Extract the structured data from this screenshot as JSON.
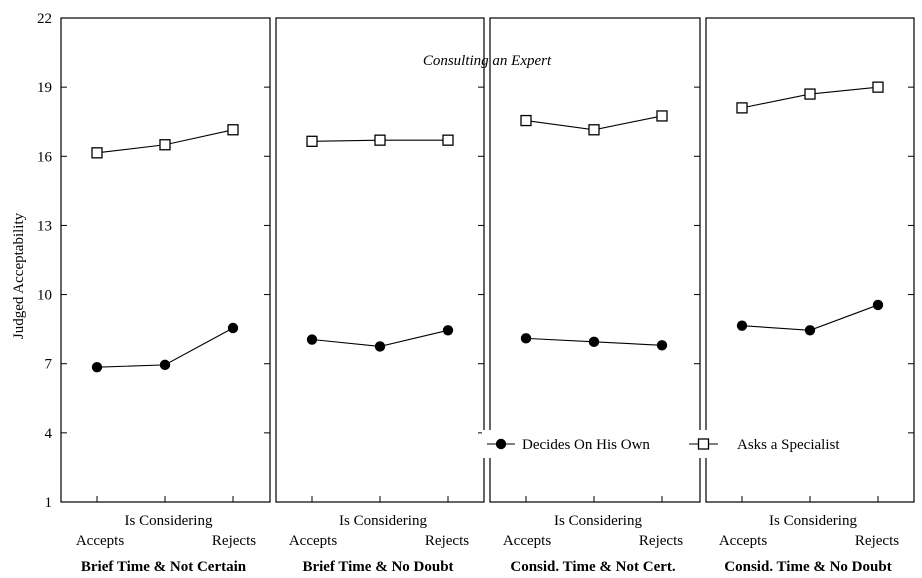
{
  "chart_data": {
    "type": "line",
    "ylabel": "Judged Acceptability",
    "ylim": [
      1,
      22
    ],
    "yticks": [
      1,
      4,
      7,
      10,
      13,
      16,
      19,
      22
    ],
    "annotation": "Consulting an Expert",
    "x_axis_title": "Is Considering",
    "x_endpoint_labels": [
      "Accepts",
      "Rejects"
    ],
    "legend_position": "bottom-right",
    "legend": [
      {
        "name": "Decides On His Own",
        "marker": "filled-circle"
      },
      {
        "name": "Asks a Specialist",
        "marker": "open-square"
      }
    ],
    "panels": [
      {
        "title": "Brief Time & Not Certain",
        "series": [
          {
            "name": "Decides On His Own",
            "values": [
              6.85,
              6.95,
              8.55
            ]
          },
          {
            "name": "Asks a Specialist",
            "values": [
              16.15,
              16.5,
              17.15
            ]
          }
        ]
      },
      {
        "title": "Brief Time & No Doubt",
        "series": [
          {
            "name": "Decides On His Own",
            "values": [
              8.05,
              7.75,
              8.45
            ]
          },
          {
            "name": "Asks a Specialist",
            "values": [
              16.65,
              16.7,
              16.7
            ]
          }
        ]
      },
      {
        "title": "Consid. Time & Not Cert.",
        "series": [
          {
            "name": "Decides On His Own",
            "values": [
              8.1,
              7.95,
              7.8
            ]
          },
          {
            "name": "Asks a Specialist",
            "values": [
              17.55,
              17.15,
              17.75
            ]
          }
        ]
      },
      {
        "title": "Consid. Time & No Doubt",
        "series": [
          {
            "name": "Decides On His Own",
            "values": [
              8.65,
              8.45,
              9.55
            ]
          },
          {
            "name": "Asks a Specialist",
            "values": [
              18.1,
              18.7,
              19.0
            ]
          }
        ]
      }
    ]
  }
}
